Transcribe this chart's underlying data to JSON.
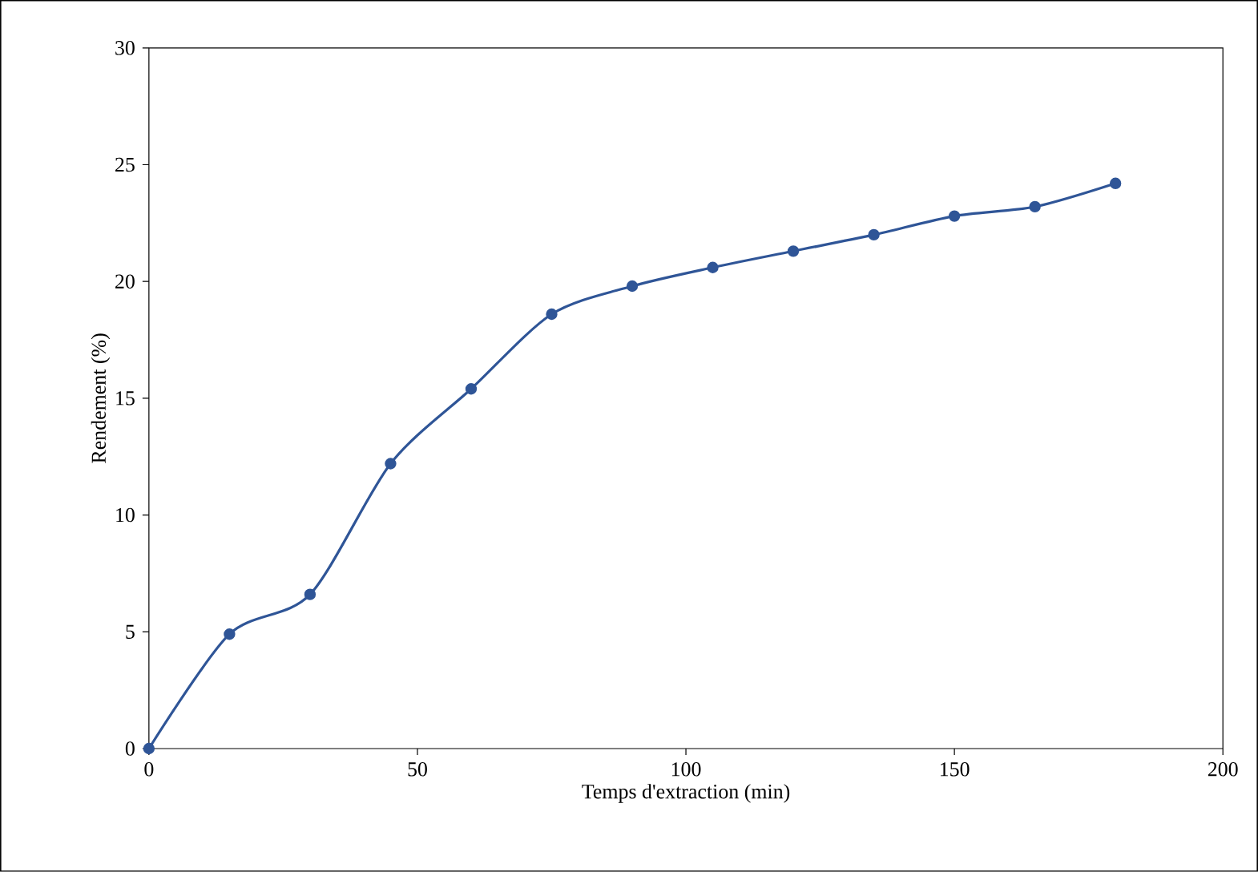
{
  "chart_data": {
    "type": "line",
    "xlabel": "Temps d'extraction (min)",
    "ylabel": "Rendement (%)",
    "x": [
      0,
      15,
      30,
      45,
      60,
      75,
      90,
      105,
      120,
      135,
      150,
      165,
      180
    ],
    "series": [
      {
        "color": "#2f5597",
        "values": [
          0,
          4.9,
          6.6,
          12.2,
          15.4,
          18.6,
          19.8,
          20.6,
          21.3,
          22.0,
          22.8,
          23.2,
          24.2
        ]
      }
    ],
    "xlim": [
      0,
      200
    ],
    "xticks": [
      0,
      50,
      100,
      150,
      200
    ],
    "ylim": [
      0,
      30
    ],
    "yticks": [
      0,
      5,
      10,
      15,
      20,
      25,
      30
    ],
    "grid": false,
    "marker": "circle",
    "line_style": "solid"
  }
}
